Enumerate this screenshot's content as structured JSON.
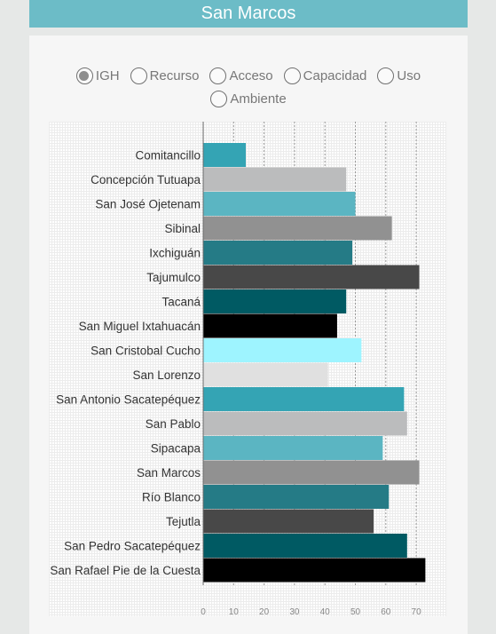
{
  "header": {
    "title": "San Marcos"
  },
  "filters": [
    {
      "label": "IGH",
      "selected": true
    },
    {
      "label": "Recurso",
      "selected": false
    },
    {
      "label": "Acceso",
      "selected": false
    },
    {
      "label": "Capacidad",
      "selected": false
    },
    {
      "label": "Uso",
      "selected": false
    },
    {
      "label": "Ambiente",
      "selected": false
    }
  ],
  "palette": [
    "#34a4b4",
    "#bbbcbd",
    "#5bb5c2",
    "#919191",
    "#257b86",
    "#484848",
    "#005a63",
    "#000000",
    "#9ef4ff",
    "#e0e0e0"
  ],
  "chart_data": {
    "type": "bar",
    "orientation": "horizontal",
    "categories": [
      "Comitancillo",
      "Concepción Tutuapa",
      "San José Ojetenam",
      "Sibinal",
      "Ixchiguán",
      "Tajumulco",
      "Tacaná",
      "San Miguel Ixtahuacán",
      "San Cristobal Cucho",
      "San Lorenzo",
      "San Antonio Sacatepéquez",
      "San Pablo",
      "Sipacapa",
      "San Marcos",
      "Río Blanco",
      "Tejutla",
      "San Pedro Sacatepéquez",
      "San Rafael Pie de la Cuesta"
    ],
    "values": [
      14,
      47,
      50,
      62,
      49,
      71,
      47,
      44,
      52,
      41,
      66,
      67,
      59,
      71,
      61,
      56,
      67,
      73
    ],
    "xlim": [
      0,
      78
    ],
    "xticks": [
      0,
      10,
      20,
      30,
      40,
      50,
      60,
      70
    ],
    "grid": true
  }
}
